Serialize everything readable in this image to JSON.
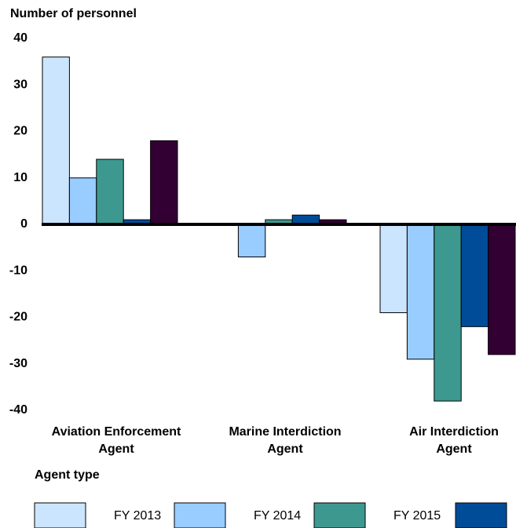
{
  "chart_data": {
    "type": "bar",
    "title": "Number of personnel",
    "x_label": "Agent type",
    "categories": [
      "Aviation Enforcement\nAgent",
      "Marine Interdiction\nAgent",
      "Air Interdiction\nAgent"
    ],
    "series": [
      {
        "name": "FY 2013",
        "color": "#cce5ff",
        "values": [
          36,
          0,
          -19
        ]
      },
      {
        "name": "FY 2014",
        "color": "#99ccff",
        "values": [
          10,
          -7,
          -29
        ]
      },
      {
        "name": "FY 2015",
        "color": "#3d9990",
        "values": [
          14,
          1,
          -38
        ]
      },
      {
        "name": null,
        "color": "#004c99",
        "values": [
          1,
          2,
          -22
        ]
      },
      {
        "color": "#330033",
        "values": [
          18,
          1,
          -28
        ]
      }
    ],
    "ylim": [
      -40,
      40
    ],
    "yticks": [
      -40,
      -30,
      -20,
      -10,
      0,
      10,
      20,
      30,
      40
    ],
    "grid": false
  }
}
